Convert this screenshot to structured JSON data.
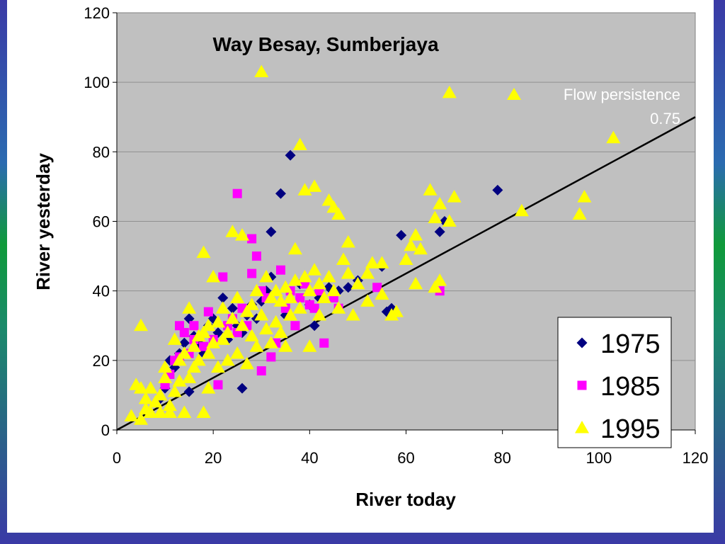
{
  "chart_data": {
    "type": "scatter",
    "title": "Way Besay, Sumberjaya",
    "xlabel": "River today",
    "ylabel": "River yesterday",
    "xlim": [
      0,
      120
    ],
    "ylim": [
      0,
      120
    ],
    "x_ticks": [
      "0",
      "20",
      "40",
      "60",
      "80",
      "100",
      "120"
    ],
    "y_ticks": [
      "0",
      "20",
      "40",
      "60",
      "80",
      "100",
      "120"
    ],
    "grid": "horizontal",
    "background": "#c0c0c0",
    "legend_position": "bottom-right",
    "annotation": {
      "label": "Flow persistence",
      "value": "0.75",
      "marker": "triangle",
      "color": "#ffff00"
    },
    "reference_line": {
      "slope": 0.75,
      "intercept": 0,
      "color": "#000000"
    },
    "series": [
      {
        "name": "1975",
        "marker": "diamond",
        "color": "#000080",
        "points": [
          [
            9,
            9
          ],
          [
            10,
            12
          ],
          [
            11,
            20
          ],
          [
            12,
            18
          ],
          [
            13,
            22
          ],
          [
            14,
            25
          ],
          [
            15,
            32
          ],
          [
            15,
            11
          ],
          [
            16,
            27
          ],
          [
            17,
            25
          ],
          [
            18,
            22
          ],
          [
            19,
            30
          ],
          [
            20,
            32
          ],
          [
            21,
            28
          ],
          [
            22,
            38
          ],
          [
            23,
            26
          ],
          [
            24,
            35
          ],
          [
            25,
            30
          ],
          [
            26,
            28
          ],
          [
            26,
            12
          ],
          [
            27,
            33
          ],
          [
            28,
            36
          ],
          [
            29,
            32
          ],
          [
            30,
            37
          ],
          [
            31,
            40
          ],
          [
            32,
            44
          ],
          [
            32,
            57
          ],
          [
            34,
            68
          ],
          [
            35,
            33
          ],
          [
            36,
            79
          ],
          [
            38,
            42
          ],
          [
            40,
            36
          ],
          [
            41,
            30
          ],
          [
            42,
            38
          ],
          [
            44,
            41
          ],
          [
            46,
            40
          ],
          [
            48,
            41
          ],
          [
            50,
            43
          ],
          [
            55,
            47
          ],
          [
            56,
            34
          ],
          [
            57,
            35
          ],
          [
            59,
            56
          ],
          [
            67,
            57
          ],
          [
            68,
            60
          ],
          [
            79,
            69
          ]
        ]
      },
      {
        "name": "1985",
        "marker": "square",
        "color": "#ff00ff",
        "points": [
          [
            10,
            13
          ],
          [
            11,
            16
          ],
          [
            12,
            20
          ],
          [
            13,
            30
          ],
          [
            13,
            21
          ],
          [
            14,
            28
          ],
          [
            15,
            22
          ],
          [
            16,
            26
          ],
          [
            16,
            30
          ],
          [
            18,
            24
          ],
          [
            19,
            34
          ],
          [
            20,
            26
          ],
          [
            21,
            13
          ],
          [
            22,
            44
          ],
          [
            23,
            30
          ],
          [
            24,
            32
          ],
          [
            25,
            28
          ],
          [
            25,
            68
          ],
          [
            26,
            35
          ],
          [
            27,
            30
          ],
          [
            28,
            45
          ],
          [
            28,
            55
          ],
          [
            29,
            50
          ],
          [
            30,
            17
          ],
          [
            30,
            40
          ],
          [
            31,
            38
          ],
          [
            32,
            21
          ],
          [
            33,
            25
          ],
          [
            34,
            46
          ],
          [
            35,
            35
          ],
          [
            36,
            40
          ],
          [
            37,
            30
          ],
          [
            38,
            38
          ],
          [
            39,
            42
          ],
          [
            40,
            36
          ],
          [
            41,
            35
          ],
          [
            42,
            40
          ],
          [
            43,
            25
          ],
          [
            45,
            38
          ],
          [
            46,
            35
          ],
          [
            54,
            41
          ],
          [
            67,
            40
          ]
        ]
      },
      {
        "name": "1995",
        "marker": "triangle",
        "color": "#ffff00",
        "points": [
          [
            3,
            4
          ],
          [
            4,
            13
          ],
          [
            5,
            3
          ],
          [
            5,
            12
          ],
          [
            5,
            30
          ],
          [
            6,
            6
          ],
          [
            6,
            9
          ],
          [
            7,
            5
          ],
          [
            7,
            12
          ],
          [
            8,
            8
          ],
          [
            9,
            10
          ],
          [
            9,
            5
          ],
          [
            10,
            15
          ],
          [
            10,
            18
          ],
          [
            11,
            5
          ],
          [
            11,
            7
          ],
          [
            12,
            11
          ],
          [
            12,
            26
          ],
          [
            13,
            14
          ],
          [
            13,
            20
          ],
          [
            14,
            5
          ],
          [
            14,
            22
          ],
          [
            15,
            15
          ],
          [
            15,
            35
          ],
          [
            16,
            18
          ],
          [
            16,
            24
          ],
          [
            17,
            20
          ],
          [
            17,
            27
          ],
          [
            18,
            5
          ],
          [
            18,
            28
          ],
          [
            18,
            51
          ],
          [
            19,
            12
          ],
          [
            19,
            22
          ],
          [
            19,
            30
          ],
          [
            20,
            25
          ],
          [
            20,
            44
          ],
          [
            21,
            18
          ],
          [
            21,
            31
          ],
          [
            22,
            26
          ],
          [
            22,
            35
          ],
          [
            23,
            20
          ],
          [
            23,
            28
          ],
          [
            24,
            32
          ],
          [
            24,
            57
          ],
          [
            25,
            22
          ],
          [
            25,
            38
          ],
          [
            26,
            30
          ],
          [
            26,
            56
          ],
          [
            27,
            34
          ],
          [
            27,
            19
          ],
          [
            28,
            36
          ],
          [
            28,
            27
          ],
          [
            29,
            24
          ],
          [
            29,
            40
          ],
          [
            30,
            103
          ],
          [
            30,
            33
          ],
          [
            31,
            44
          ],
          [
            31,
            29
          ],
          [
            32,
            38
          ],
          [
            32,
            25
          ],
          [
            33,
            40
          ],
          [
            33,
            31
          ],
          [
            34,
            37
          ],
          [
            34,
            28
          ],
          [
            35,
            41
          ],
          [
            35,
            24
          ],
          [
            36,
            38
          ],
          [
            36,
            33
          ],
          [
            37,
            52
          ],
          [
            37,
            43
          ],
          [
            38,
            82
          ],
          [
            38,
            35
          ],
          [
            39,
            69
          ],
          [
            39,
            44
          ],
          [
            40,
            24
          ],
          [
            40,
            40
          ],
          [
            41,
            70
          ],
          [
            41,
            46
          ],
          [
            42,
            33
          ],
          [
            42,
            42
          ],
          [
            43,
            38
          ],
          [
            44,
            66
          ],
          [
            44,
            44
          ],
          [
            45,
            64
          ],
          [
            45,
            40
          ],
          [
            46,
            62
          ],
          [
            46,
            35
          ],
          [
            47,
            49
          ],
          [
            48,
            54
          ],
          [
            48,
            45
          ],
          [
            49,
            33
          ],
          [
            50,
            42
          ],
          [
            52,
            37
          ],
          [
            52,
            45
          ],
          [
            53,
            48
          ],
          [
            55,
            48
          ],
          [
            55,
            39
          ],
          [
            57,
            33
          ],
          [
            58,
            34
          ],
          [
            60,
            49
          ],
          [
            61,
            53
          ],
          [
            62,
            56
          ],
          [
            62,
            42
          ],
          [
            63,
            52
          ],
          [
            65,
            69
          ],
          [
            66,
            61
          ],
          [
            66,
            41
          ],
          [
            67,
            43
          ],
          [
            67,
            65
          ],
          [
            69,
            60
          ],
          [
            69,
            97
          ],
          [
            70,
            67
          ],
          [
            84,
            63
          ],
          [
            96,
            62
          ],
          [
            97,
            67
          ],
          [
            103,
            84
          ]
        ]
      }
    ]
  }
}
